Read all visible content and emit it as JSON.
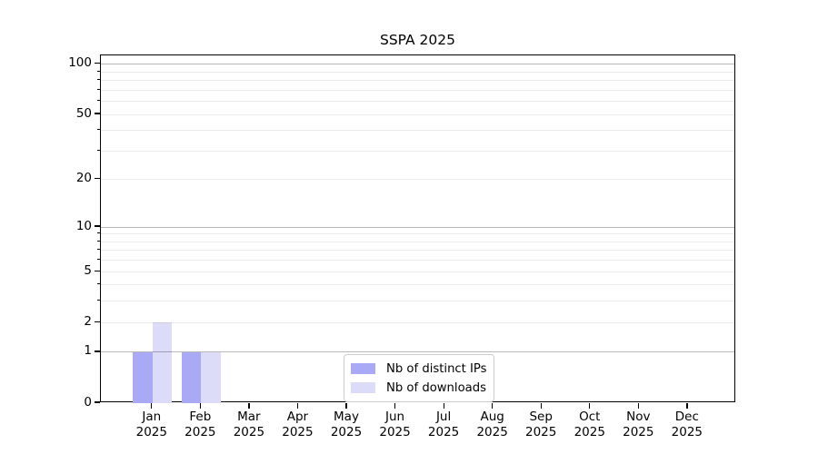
{
  "figure_title": "SSPA 2025",
  "legend": {
    "items": [
      {
        "label": "Nb of distinct IPs",
        "color": "#a9a9f6"
      },
      {
        "label": "Nb of downloads",
        "color": "#dcdcf9"
      }
    ]
  },
  "chart_data": {
    "type": "bar",
    "title": "SSPA 2025",
    "categories": [
      "Jan 2025",
      "Feb 2025",
      "Mar 2025",
      "Apr 2025",
      "May 2025",
      "Jun 2025",
      "Jul 2025",
      "Aug 2025",
      "Sep 2025",
      "Oct 2025",
      "Nov 2025",
      "Dec 2025"
    ],
    "series": [
      {
        "name": "Nb of distinct IPs",
        "color": "#a9a9f6",
        "values": [
          1,
          1,
          0,
          0,
          0,
          0,
          0,
          0,
          0,
          0,
          0,
          0
        ]
      },
      {
        "name": "Nb of downloads",
        "color": "#dcdcf9",
        "values": [
          2,
          1,
          0,
          0,
          0,
          0,
          0,
          0,
          0,
          0,
          0,
          0
        ]
      }
    ],
    "xlabel": "",
    "ylabel": "",
    "yscale": "log1p",
    "ylim": [
      0,
      113
    ],
    "yticks": [
      0,
      1,
      2,
      5,
      10,
      20,
      50,
      100
    ],
    "minor_yticks": [
      3,
      4,
      6,
      7,
      8,
      9,
      30,
      40,
      60,
      70,
      80,
      90
    ],
    "major_gridline_values": [
      1,
      10,
      100
    ],
    "grid": true,
    "grid_over_bars": true,
    "legend_location": "lower center"
  }
}
